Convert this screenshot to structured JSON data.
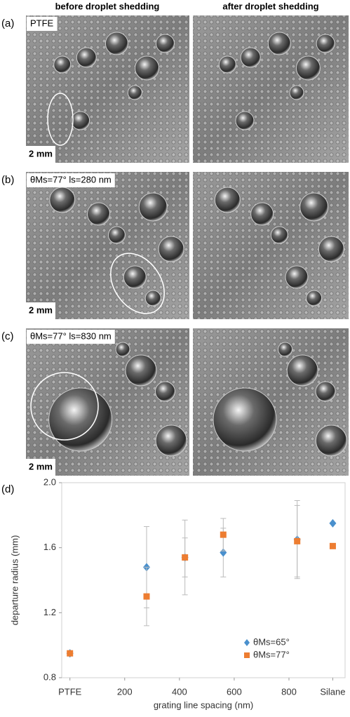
{
  "columns": [
    "before droplet shedding",
    "after droplet shedding"
  ],
  "panels": [
    {
      "label": "(a)",
      "annotation": "PTFE",
      "scale": "2 mm"
    },
    {
      "label": "(b)",
      "annotation": "θMs=77° ls=280 nm",
      "scale": "2 mm"
    },
    {
      "label": "(c)",
      "annotation": "θMs=77° ls=830 nm",
      "scale": "2 mm"
    }
  ],
  "chart_data": {
    "type": "scatter",
    "label": "(d)",
    "x_label": "grating line spacing (nm)",
    "y_label": "departure radius (mm)",
    "xlim": [
      -30,
      1005
    ],
    "ylim": [
      0.8,
      2.0
    ],
    "xticks": [
      {
        "value": 0,
        "label": "PTFE"
      },
      200,
      400,
      600,
      800,
      {
        "value": 960,
        "label": "Silane"
      }
    ],
    "yticks": [
      {
        "value": 0.8,
        "label": "0.8"
      },
      {
        "value": 1.2,
        "label": "1.2"
      },
      {
        "value": 1.6,
        "label": "1.6"
      },
      {
        "value": 2.0,
        "label": "2.0"
      }
    ],
    "legend": "lower right",
    "series": [
      {
        "name": "θMs=65°",
        "color": "#4a90cd",
        "marker": "diamond",
        "x": [
          0,
          280,
          420,
          560,
          830,
          960
        ],
        "values": [
          0.95,
          1.48,
          1.54,
          1.57,
          1.65,
          1.75
        ],
        "errors": [
          0,
          0.25,
          0.23,
          0.15,
          0.24,
          0
        ]
      },
      {
        "name": "θMs=77°",
        "color": "#ed7d31",
        "marker": "square",
        "x": [
          0,
          280,
          420,
          560,
          830,
          960
        ],
        "values": [
          0.95,
          1.3,
          1.54,
          1.68,
          1.64,
          1.61
        ],
        "errors": [
          0,
          0.18,
          0.12,
          0.1,
          0.22,
          0
        ]
      }
    ]
  }
}
